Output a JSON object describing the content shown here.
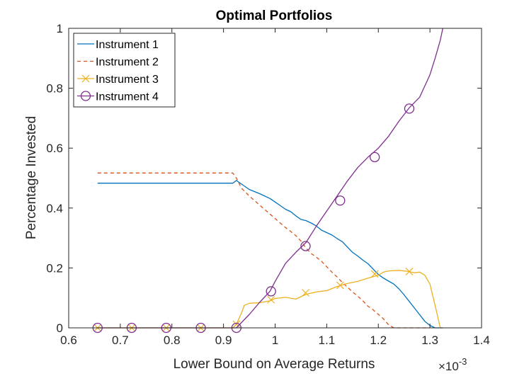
{
  "chart_data": {
    "type": "line",
    "title": "Optimal Portfolios",
    "xlabel": "Lower Bound on Average Returns",
    "ylabel": "Percentage Invested",
    "x_exponent_label": "×10",
    "x_exponent_power": "-3",
    "xlim": [
      0.6,
      1.4
    ],
    "ylim": [
      0,
      1
    ],
    "x_ticks": [
      "0.6",
      "0.7",
      "0.8",
      "0.9",
      "1",
      "1.1",
      "1.2",
      "1.3",
      "1.4"
    ],
    "y_ticks": [
      "0",
      "0.2",
      "0.4",
      "0.6",
      "0.8",
      "1"
    ],
    "legend_position": "top-left",
    "grid": false,
    "series": [
      {
        "name": "Instrument 1",
        "color": "#0072BD",
        "style": "solid",
        "marker": "none",
        "x": [
          0.656,
          0.7,
          0.75,
          0.8,
          0.85,
          0.9,
          0.918,
          0.925,
          0.935,
          0.95,
          0.97,
          0.99,
          1.0,
          1.01,
          1.02,
          1.03,
          1.04,
          1.05,
          1.06,
          1.07,
          1.08,
          1.09,
          1.1,
          1.11,
          1.12,
          1.13,
          1.14,
          1.15,
          1.16,
          1.17,
          1.18,
          1.19,
          1.2,
          1.21,
          1.22,
          1.23,
          1.24,
          1.25,
          1.26,
          1.27,
          1.28,
          1.29,
          1.3,
          1.31,
          1.32,
          1.325
        ],
        "y": [
          0.483,
          0.483,
          0.483,
          0.483,
          0.483,
          0.483,
          0.483,
          0.492,
          0.48,
          0.462,
          0.448,
          0.432,
          0.42,
          0.408,
          0.396,
          0.388,
          0.374,
          0.362,
          0.358,
          0.35,
          0.34,
          0.326,
          0.318,
          0.31,
          0.298,
          0.288,
          0.27,
          0.252,
          0.24,
          0.226,
          0.214,
          0.196,
          0.178,
          0.166,
          0.156,
          0.146,
          0.13,
          0.11,
          0.088,
          0.066,
          0.044,
          0.022,
          0.008,
          0.0,
          0.0,
          0.0
        ]
      },
      {
        "name": "Instrument 2",
        "color": "#D95319",
        "style": "dashed",
        "marker": "none",
        "x": [
          0.656,
          0.7,
          0.75,
          0.8,
          0.85,
          0.9,
          0.918,
          0.925,
          0.935,
          0.95,
          0.97,
          0.99,
          1.0,
          1.01,
          1.02,
          1.03,
          1.04,
          1.05,
          1.06,
          1.07,
          1.08,
          1.09,
          1.1,
          1.11,
          1.12,
          1.13,
          1.14,
          1.15,
          1.16,
          1.17,
          1.18,
          1.19,
          1.2,
          1.21,
          1.22,
          1.23,
          1.24,
          1.25,
          1.26,
          1.27,
          1.28,
          1.29,
          1.3
        ],
        "y": [
          0.517,
          0.517,
          0.517,
          0.517,
          0.517,
          0.517,
          0.517,
          0.5,
          0.466,
          0.44,
          0.41,
          0.38,
          0.365,
          0.35,
          0.335,
          0.322,
          0.308,
          0.29,
          0.266,
          0.248,
          0.236,
          0.222,
          0.204,
          0.186,
          0.17,
          0.152,
          0.136,
          0.12,
          0.106,
          0.09,
          0.072,
          0.06,
          0.045,
          0.03,
          0.01,
          0.0,
          0.0,
          0.0,
          0.0,
          0.0,
          0.0,
          0.0,
          0.0
        ]
      },
      {
        "name": "Instrument 3",
        "color": "#EDB120",
        "style": "solid",
        "marker": "x",
        "x": [
          0.656,
          0.7,
          0.75,
          0.8,
          0.85,
          0.9,
          0.918,
          0.925,
          0.935,
          0.94,
          0.95,
          0.97,
          0.99,
          1.0,
          1.02,
          1.04,
          1.06,
          1.08,
          1.1,
          1.12,
          1.14,
          1.16,
          1.18,
          1.2,
          1.21,
          1.22,
          1.24,
          1.26,
          1.27,
          1.28,
          1.29,
          1.3,
          1.31,
          1.32,
          1.325
        ],
        "y": [
          0.0,
          0.0,
          0.0,
          0.0,
          0.0,
          0.0,
          0.0,
          0.012,
          0.05,
          0.075,
          0.082,
          0.084,
          0.09,
          0.098,
          0.102,
          0.096,
          0.112,
          0.12,
          0.124,
          0.138,
          0.148,
          0.155,
          0.166,
          0.176,
          0.186,
          0.19,
          0.192,
          0.188,
          0.184,
          0.186,
          0.176,
          0.146,
          0.075,
          0.0,
          0.0
        ],
        "marker_x": [
          0.656,
          0.722,
          0.789,
          0.856,
          0.925,
          0.992,
          1.059,
          1.126,
          1.193,
          1.26
        ],
        "marker_y": [
          0.0,
          0.0,
          0.0,
          0.0,
          0.012,
          0.094,
          0.117,
          0.142,
          0.18,
          0.188
        ]
      },
      {
        "name": "Instrument 4",
        "color": "#7E2F8E",
        "style": "solid",
        "marker": "o",
        "x": [
          0.656,
          0.7,
          0.75,
          0.8,
          0.85,
          0.9,
          0.925,
          0.95,
          0.97,
          0.99,
          1.0,
          1.02,
          1.04,
          1.06,
          1.08,
          1.1,
          1.12,
          1.14,
          1.16,
          1.18,
          1.2,
          1.22,
          1.24,
          1.26,
          1.28,
          1.3,
          1.31,
          1.32,
          1.325
        ],
        "y": [
          0.0,
          0.0,
          0.0,
          0.0,
          0.0,
          0.0,
          0.0,
          0.045,
          0.085,
          0.122,
          0.155,
          0.215,
          0.252,
          0.285,
          0.34,
          0.39,
          0.44,
          0.49,
          0.535,
          0.57,
          0.6,
          0.64,
          0.69,
          0.735,
          0.77,
          0.845,
          0.9,
          0.96,
          1.0
        ],
        "marker_x": [
          0.656,
          0.722,
          0.789,
          0.856,
          0.925,
          0.992,
          1.059,
          1.126,
          1.193,
          1.26
        ],
        "marker_y": [
          0.0,
          0.0,
          0.0,
          0.0,
          0.0,
          0.122,
          0.273,
          0.425,
          0.57,
          0.732
        ]
      }
    ]
  }
}
